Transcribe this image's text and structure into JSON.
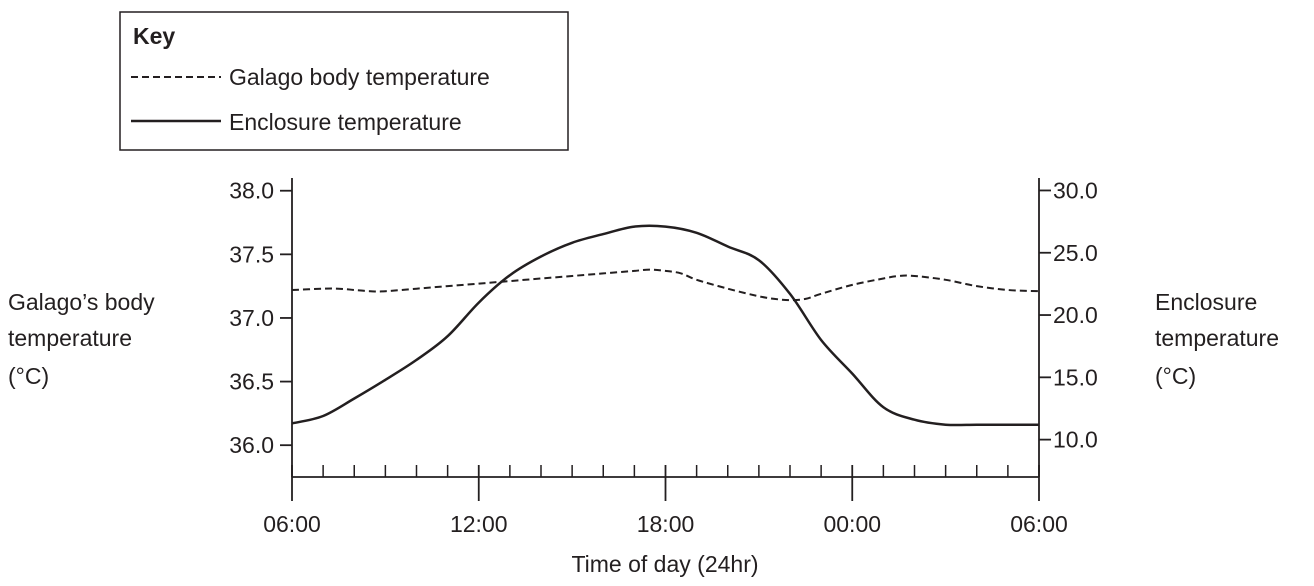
{
  "legend": {
    "title": "Key",
    "body_label": "Galago body temperature",
    "enclosure_label": "Enclosure temperature"
  },
  "axes": {
    "left_label": [
      "Galago’s body",
      "temperature",
      "(°C)"
    ],
    "right_label": [
      "Enclosure",
      "temperature",
      "(°C)"
    ],
    "x_label": "Time of day (24hr)"
  },
  "colors": {
    "ink": "#231f20",
    "background": "#ffffff"
  },
  "chart_data": {
    "type": "line",
    "x_unit": "hours elapsed from 06:00",
    "x_ticks": [
      {
        "hours": 0,
        "label": "06:00"
      },
      {
        "hours": 6,
        "label": "12:00"
      },
      {
        "hours": 12,
        "label": "18:00"
      },
      {
        "hours": 18,
        "label": "00:00"
      },
      {
        "hours": 24,
        "label": "06:00"
      }
    ],
    "xlim": [
      0,
      24
    ],
    "y_left": {
      "ylim": [
        35.75,
        38.1
      ],
      "ticks": [
        "38.0",
        "37.5",
        "37.0",
        "36.5",
        "36.0"
      ]
    },
    "y_right": {
      "ylim": [
        7.0,
        31.0
      ],
      "ticks": [
        "30.0",
        "25.0",
        "20.0",
        "15.0",
        "10.0"
      ]
    },
    "series": [
      {
        "name": "Galago body temperature",
        "axis": "left",
        "style": "dashed",
        "points": [
          [
            0,
            37.22
          ],
          [
            1,
            37.23
          ],
          [
            1.5,
            37.23
          ],
          [
            2,
            37.22
          ],
          [
            2.5,
            37.21
          ],
          [
            3,
            37.21
          ],
          [
            4,
            37.23
          ],
          [
            5,
            37.25
          ],
          [
            6,
            37.27
          ],
          [
            7,
            37.29
          ],
          [
            8,
            37.31
          ],
          [
            9,
            37.33
          ],
          [
            10,
            37.35
          ],
          [
            11,
            37.37
          ],
          [
            11.5,
            37.38
          ],
          [
            12,
            37.37
          ],
          [
            12.5,
            37.35
          ],
          [
            13,
            37.3
          ],
          [
            14,
            37.23
          ],
          [
            15,
            37.17
          ],
          [
            15.5,
            37.15
          ],
          [
            16,
            37.14
          ],
          [
            16.5,
            37.15
          ],
          [
            17,
            37.19
          ],
          [
            18,
            37.26
          ],
          [
            19,
            37.31
          ],
          [
            19.5,
            37.33
          ],
          [
            20,
            37.33
          ],
          [
            21,
            37.3
          ],
          [
            22,
            37.25
          ],
          [
            23,
            37.22
          ],
          [
            24,
            37.21
          ]
        ]
      },
      {
        "name": "Enclosure temperature",
        "axis": "right",
        "style": "solid",
        "points": [
          [
            0,
            11.3
          ],
          [
            1,
            11.9
          ],
          [
            2,
            13.3
          ],
          [
            3,
            14.8
          ],
          [
            4,
            16.4
          ],
          [
            5,
            18.3
          ],
          [
            6,
            21.0
          ],
          [
            7,
            23.2
          ],
          [
            8,
            24.7
          ],
          [
            9,
            25.8
          ],
          [
            10,
            26.5
          ],
          [
            11,
            27.1
          ],
          [
            12,
            27.1
          ],
          [
            13,
            26.6
          ],
          [
            14,
            25.5
          ],
          [
            15,
            24.4
          ],
          [
            16,
            21.7
          ],
          [
            17,
            18.0
          ],
          [
            18,
            15.3
          ],
          [
            19,
            12.6
          ],
          [
            20,
            11.6
          ],
          [
            21,
            11.2
          ],
          [
            22,
            11.2
          ],
          [
            23,
            11.2
          ],
          [
            24,
            11.2
          ]
        ]
      }
    ]
  }
}
